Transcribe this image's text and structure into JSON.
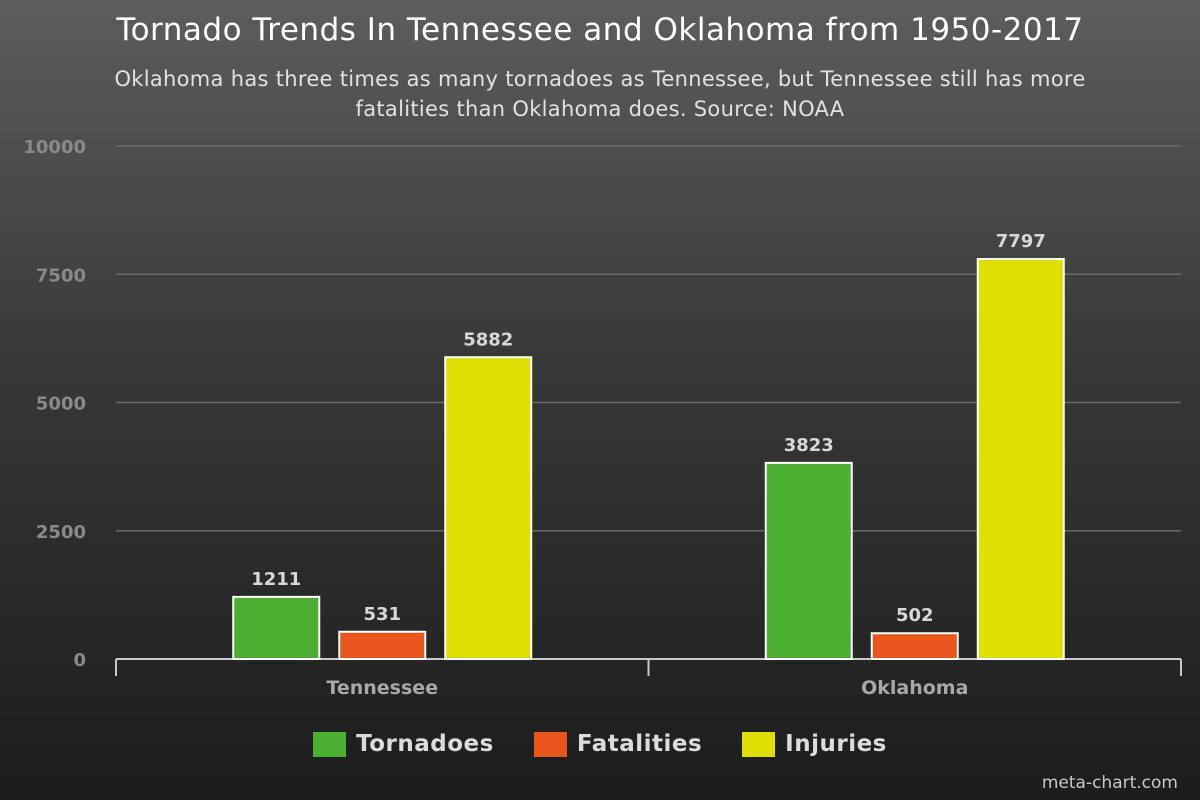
{
  "chart_data": {
    "type": "bar",
    "title": "Tornado Trends In Tennessee and Oklahoma from 1950-2017",
    "subtitle_lines": [
      "Oklahoma has three times as many tornadoes as Tennessee, but Tennessee still has more",
      "fatalities than Oklahoma does. Source: NOAA"
    ],
    "categories": [
      "Tennessee",
      "Oklahoma"
    ],
    "series": [
      {
        "name": "Tornadoes",
        "color": "#4caf32",
        "values": [
          1211,
          3823
        ]
      },
      {
        "name": "Fatalities",
        "color": "#e8561d",
        "values": [
          531,
          502
        ]
      },
      {
        "name": "Injuries",
        "color": "#dde000",
        "values": [
          5882,
          7797
        ]
      }
    ],
    "ylim": [
      0,
      10000
    ],
    "yticks": [
      0,
      2500,
      5000,
      7500,
      10000
    ],
    "grid": true,
    "legend_position": "bottom-center",
    "xlabel": "",
    "ylabel": ""
  },
  "watermark": "meta-chart.com"
}
